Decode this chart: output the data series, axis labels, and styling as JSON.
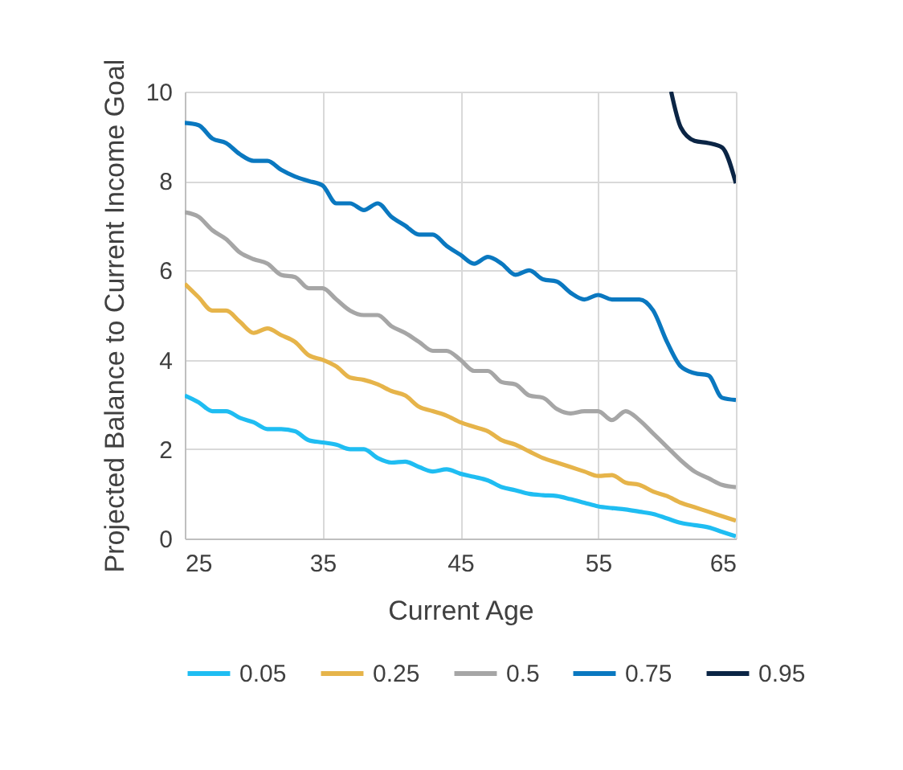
{
  "chart_data": {
    "type": "line",
    "xlabel": "Current Age",
    "ylabel": "Projected Balance to Current Income Goal",
    "x": [
      25,
      26,
      27,
      28,
      29,
      30,
      31,
      32,
      33,
      34,
      35,
      36,
      37,
      38,
      39,
      40,
      41,
      42,
      43,
      44,
      45,
      46,
      47,
      48,
      49,
      50,
      51,
      52,
      53,
      54,
      55,
      56,
      57,
      58,
      59,
      60,
      61,
      62,
      63,
      64,
      65
    ],
    "series": [
      {
        "name": "0.05",
        "color": "#1fbdf2",
        "values": [
          3.2,
          3.05,
          2.85,
          2.85,
          2.7,
          2.6,
          2.45,
          2.45,
          2.4,
          2.2,
          2.15,
          2.1,
          2.0,
          2.0,
          1.8,
          1.7,
          1.72,
          1.6,
          1.5,
          1.55,
          1.45,
          1.38,
          1.3,
          1.15,
          1.08,
          1.0,
          0.97,
          0.95,
          0.88,
          0.8,
          0.72,
          0.68,
          0.65,
          0.6,
          0.55,
          0.45,
          0.35,
          0.3,
          0.25,
          0.15,
          0.05
        ]
      },
      {
        "name": "0.25",
        "color": "#e6b44a",
        "values": [
          5.7,
          5.4,
          5.1,
          5.1,
          4.85,
          4.6,
          4.7,
          4.55,
          4.4,
          4.1,
          4.0,
          3.85,
          3.6,
          3.55,
          3.45,
          3.3,
          3.2,
          2.95,
          2.85,
          2.75,
          2.6,
          2.5,
          2.4,
          2.2,
          2.1,
          1.95,
          1.8,
          1.7,
          1.6,
          1.5,
          1.4,
          1.42,
          1.25,
          1.2,
          1.05,
          0.95,
          0.8,
          0.7,
          0.6,
          0.5,
          0.4
        ]
      },
      {
        "name": "0.5",
        "color": "#a6a6a6",
        "values": [
          7.3,
          7.2,
          6.9,
          6.7,
          6.4,
          6.25,
          6.15,
          5.9,
          5.85,
          5.6,
          5.6,
          5.35,
          5.1,
          5.0,
          5.0,
          4.75,
          4.6,
          4.4,
          4.2,
          4.2,
          4.0,
          3.75,
          3.75,
          3.5,
          3.45,
          3.2,
          3.15,
          2.9,
          2.8,
          2.85,
          2.85,
          2.65,
          2.85,
          2.65,
          2.35,
          2.05,
          1.75,
          1.5,
          1.35,
          1.2,
          1.15
        ]
      },
      {
        "name": "0.75",
        "color": "#0a78c0",
        "values": [
          9.3,
          9.25,
          8.95,
          8.85,
          8.6,
          8.45,
          8.45,
          8.25,
          8.1,
          8.0,
          7.9,
          7.5,
          7.5,
          7.35,
          7.5,
          7.2,
          7.0,
          6.8,
          6.8,
          6.55,
          6.35,
          6.15,
          6.3,
          6.15,
          5.9,
          6.0,
          5.8,
          5.75,
          5.5,
          5.35,
          5.45,
          5.35,
          5.35,
          5.35,
          5.1,
          4.4,
          3.85,
          3.7,
          3.65,
          3.15,
          3.1
        ]
      },
      {
        "name": "0.95",
        "color": "#0b2545",
        "x": [
          60.3,
          61,
          62,
          63,
          64,
          65
        ],
        "values": [
          10,
          9.2,
          8.9,
          8.85,
          8.75,
          7.95
        ]
      }
    ],
    "xlim": [
      25,
      65
    ],
    "xticks": [
      25,
      35,
      45,
      55,
      65
    ],
    "ylim": [
      0,
      10
    ],
    "yticks": [
      0,
      2,
      4,
      6,
      8,
      10
    ],
    "grid": true,
    "legend": "bottom",
    "marker": "none",
    "line_style": "solid"
  }
}
